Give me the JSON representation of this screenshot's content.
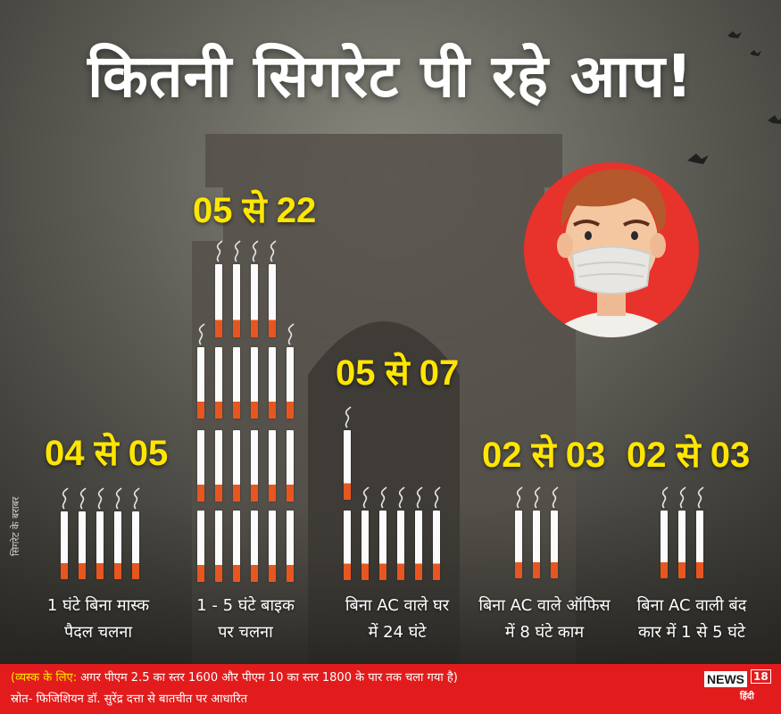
{
  "title": "कितनी सिगरेट पी रहे आप!",
  "side_label": "सिगरेट के बराबर",
  "groups": [
    {
      "range": "04 से 05",
      "cigarettes": 5,
      "caption_line1": "1 घंटे बिना मास्क",
      "caption_line2": "पैदल चलना"
    },
    {
      "range": "05 से 22",
      "cigarettes": 22,
      "caption_line1": "1 - 5 घंटे बाइक",
      "caption_line2": "पर चलना"
    },
    {
      "range": "05 से 07",
      "cigarettes": 7,
      "caption_line1": "बिना AC वाले घर",
      "caption_line2": "में 24 घंटे"
    },
    {
      "range": "02 से 03",
      "cigarettes": 3,
      "caption_line1": "बिना AC वाले ऑफिस",
      "caption_line2": "में 8 घंटे काम"
    },
    {
      "range": "02 से 03",
      "cigarettes": 3,
      "caption_line1": "बिना AC वाली बंद",
      "caption_line2": "कार में 1 से 5 घंटे"
    }
  ],
  "footer": {
    "note_tag": "(व्यस्क के लिए:",
    "note_text": "अगर पीएम 2.5 का स्तर 1600 और पीएम 10 का स्तर 1800 के पार तक चला गया है)",
    "source": "स्रोत- फिजिशियन डॉ. सुरेंद्र दत्ता से बातचीत पर आधारित"
  },
  "logo": {
    "brand": "NEWS",
    "number": "18",
    "lang": "हिंदी"
  },
  "colors": {
    "accent_yellow": "#ffe600",
    "footer_red": "#e21c1c",
    "filter_orange": "#e8561f",
    "circle_red": "#e8322c"
  }
}
